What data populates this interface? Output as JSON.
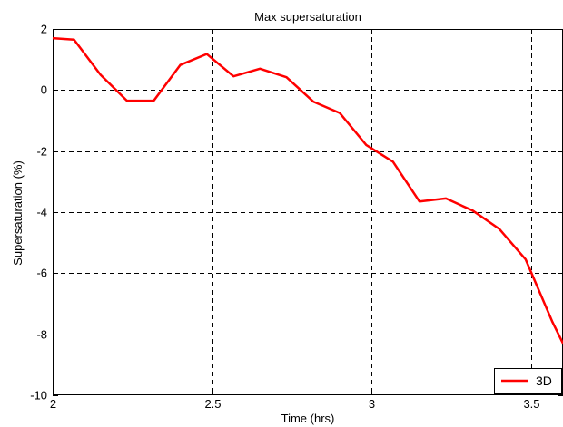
{
  "chart_data": {
    "type": "line",
    "title": "Max supersaturation",
    "xlabel": "Time (hrs)",
    "ylabel": "Supersaturation (%)",
    "xlim": [
      2,
      3.6
    ],
    "ylim": [
      -10,
      2
    ],
    "xticks": [
      2,
      2.5,
      3,
      3.5
    ],
    "xtick_labels": [
      "2",
      "2.5",
      "3",
      "3.5"
    ],
    "yticks": [
      2,
      0,
      -2,
      -4,
      -6,
      -8,
      -10
    ],
    "ytick_labels": [
      "2",
      "0",
      "-2",
      "-4",
      "-6",
      "-8",
      "-10"
    ],
    "grid": true,
    "legend_position": "bottom-right",
    "series": [
      {
        "name": "3D",
        "color": "#ff0000",
        "x": [
          2.0,
          2.067,
          2.15,
          2.233,
          2.317,
          2.4,
          2.483,
          2.567,
          2.65,
          2.733,
          2.817,
          2.9,
          2.983,
          3.067,
          3.15,
          3.233,
          3.317,
          3.4,
          3.483,
          3.567,
          3.6
        ],
        "y": [
          1.7,
          1.65,
          0.5,
          -0.35,
          -0.35,
          0.82,
          1.18,
          0.45,
          0.7,
          0.42,
          -0.38,
          -0.75,
          -1.8,
          -2.35,
          -3.65,
          -3.55,
          -3.95,
          -4.55,
          -5.55,
          -7.6,
          -8.3
        ]
      }
    ]
  }
}
